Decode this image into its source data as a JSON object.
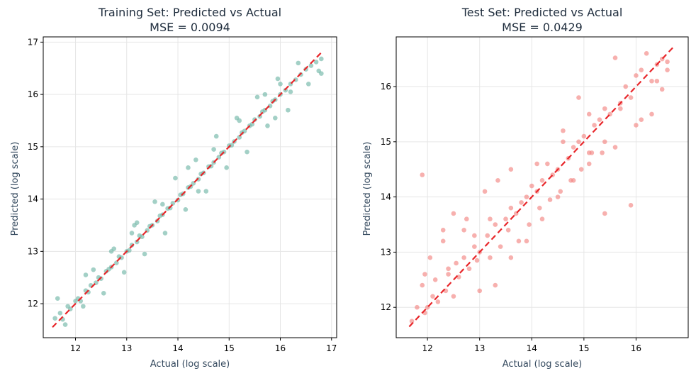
{
  "chart_data": [
    {
      "type": "scatter",
      "title_line1": "Training Set: Predicted vs Actual",
      "title_line2": "MSE = 0.0094",
      "xlabel": "Actual (log scale)",
      "ylabel": "Predicted (log scale)",
      "xlim": [
        11.37,
        17.1
      ],
      "ylim": [
        11.35,
        17.1
      ],
      "xticks": [
        12,
        13,
        14,
        15,
        16,
        17
      ],
      "yticks": [
        12,
        13,
        14,
        15,
        16,
        17
      ],
      "grid": true,
      "point_color": "#72b7a8",
      "reference_line": {
        "x": [
          11.55,
          16.8
        ],
        "y": [
          11.55,
          16.8
        ],
        "color": "#e8262a",
        "style": "dashed"
      },
      "series": [
        {
          "x": [
            11.6,
            11.7,
            11.75,
            11.85,
            11.9,
            12.0,
            12.05,
            12.1,
            12.2,
            12.25,
            12.3,
            12.4,
            12.45,
            12.5,
            12.6,
            12.65,
            12.7,
            12.8,
            12.85,
            12.9,
            13.0,
            13.05,
            13.1,
            13.2,
            13.25,
            13.3,
            13.4,
            13.45,
            13.5,
            13.6,
            13.65,
            13.7,
            13.8,
            13.85,
            13.9,
            14.0,
            14.05,
            14.1,
            14.2,
            14.25,
            14.3,
            14.4,
            14.45,
            14.5,
            14.6,
            14.65,
            14.7,
            14.8,
            14.85,
            14.9,
            15.0,
            15.05,
            15.1,
            15.2,
            15.25,
            15.3,
            15.4,
            15.45,
            15.5,
            15.6,
            15.65,
            15.7,
            15.8,
            15.85,
            15.9,
            16.0,
            16.1,
            16.2,
            16.3,
            16.4,
            16.5,
            16.6,
            16.7,
            16.8,
            11.65,
            11.8,
            12.15,
            12.35,
            12.55,
            12.75,
            12.95,
            13.15,
            13.35,
            13.55,
            13.75,
            13.95,
            14.15,
            14.35,
            14.55,
            14.75,
            14.95,
            15.15,
            15.35,
            15.55,
            15.75,
            15.95,
            16.15,
            16.35,
            16.55,
            16.75,
            12.7,
            13.2,
            13.7,
            14.2,
            14.7,
            15.2,
            15.7,
            16.2,
            16.8,
            16.0,
            13.1,
            14.4,
            12.2,
            15.9
          ],
          "y": [
            11.72,
            11.82,
            11.7,
            11.95,
            11.9,
            12.05,
            12.1,
            12.05,
            12.25,
            12.22,
            12.35,
            12.4,
            12.5,
            12.48,
            12.62,
            12.66,
            12.7,
            12.78,
            12.9,
            12.88,
            13.0,
            13.02,
            13.12,
            13.18,
            13.3,
            13.28,
            13.4,
            13.48,
            13.5,
            13.58,
            13.68,
            13.7,
            13.82,
            13.83,
            13.92,
            13.98,
            14.08,
            14.1,
            14.22,
            14.24,
            14.3,
            14.38,
            14.48,
            14.5,
            14.62,
            14.63,
            14.7,
            14.8,
            14.88,
            14.9,
            15.02,
            15.03,
            15.1,
            15.18,
            15.27,
            15.3,
            15.4,
            15.43,
            15.52,
            15.58,
            15.67,
            15.7,
            15.78,
            15.87,
            15.9,
            16.0,
            16.08,
            16.2,
            16.28,
            16.38,
            16.48,
            16.55,
            16.62,
            16.68,
            12.1,
            11.6,
            11.95,
            12.65,
            12.2,
            13.05,
            12.6,
            13.5,
            12.95,
            13.95,
            13.35,
            14.4,
            13.8,
            14.75,
            14.15,
            15.2,
            14.6,
            15.55,
            14.9,
            15.95,
            15.4,
            16.3,
            15.7,
            16.6,
            16.2,
            16.45,
            13.0,
            13.55,
            13.9,
            14.6,
            14.95,
            15.5,
            16.0,
            16.05,
            16.4,
            16.2,
            13.35,
            14.15,
            12.55,
            15.55
          ]
        }
      ]
    },
    {
      "type": "scatter",
      "title_line1": "Test Set: Predicted vs Actual",
      "title_line2": "MSE = 0.0429",
      "xlabel": "Actual (log scale)",
      "ylabel": "Predicted (log scale)",
      "xlim": [
        11.4,
        17.0
      ],
      "ylim": [
        11.45,
        16.9
      ],
      "xticks": [
        12,
        13,
        14,
        15,
        16
      ],
      "yticks": [
        12,
        13,
        14,
        15,
        16
      ],
      "grid": true,
      "point_color": "#f28582",
      "reference_line": {
        "x": [
          11.65,
          16.72
        ],
        "y": [
          11.65,
          16.72
        ],
        "color": "#e8262a",
        "style": "dashed"
      },
      "series": [
        {
          "x": [
            11.7,
            11.8,
            11.9,
            11.95,
            12.0,
            12.05,
            12.1,
            12.15,
            12.2,
            12.3,
            12.35,
            12.4,
            12.5,
            12.55,
            12.6,
            12.7,
            12.75,
            12.8,
            12.9,
            12.95,
            13.0,
            13.1,
            13.15,
            13.2,
            13.3,
            13.35,
            13.4,
            13.5,
            13.55,
            13.6,
            13.7,
            13.75,
            13.8,
            13.9,
            13.95,
            14.0,
            14.1,
            14.15,
            14.2,
            14.3,
            14.35,
            14.4,
            14.5,
            14.55,
            14.6,
            14.7,
            14.75,
            14.8,
            14.9,
            14.95,
            15.0,
            15.1,
            15.15,
            15.2,
            15.3,
            15.35,
            15.4,
            15.5,
            15.6,
            15.7,
            15.8,
            15.9,
            16.0,
            16.1,
            16.2,
            16.3,
            16.4,
            16.5,
            16.6,
            11.9,
            11.95,
            12.3,
            12.5,
            12.7,
            13.0,
            13.3,
            13.6,
            13.9,
            14.2,
            14.5,
            14.8,
            15.1,
            15.4,
            15.7,
            16.0,
            16.3,
            16.6,
            12.4,
            12.9,
            13.2,
            13.6,
            14.1,
            14.6,
            15.1,
            15.6,
            16.1,
            16.5,
            15.4,
            15.9,
            16.4,
            14.9
          ],
          "y": [
            11.75,
            12.0,
            12.4,
            11.9,
            12.0,
            12.9,
            12.2,
            12.5,
            12.1,
            13.4,
            12.3,
            12.6,
            13.7,
            12.8,
            12.55,
            12.9,
            13.6,
            12.7,
            13.1,
            12.85,
            13.0,
            14.1,
            13.3,
            12.9,
            13.5,
            14.3,
            13.1,
            13.6,
            13.4,
            14.5,
            13.7,
            13.2,
            13.9,
            14.0,
            13.5,
            14.2,
            14.1,
            13.8,
            14.3,
            14.6,
            13.95,
            14.4,
            14.5,
            14.1,
            15.2,
            14.7,
            14.3,
            14.9,
            15.0,
            14.5,
            15.1,
            15.5,
            14.8,
            15.3,
            15.4,
            14.8,
            15.6,
            15.5,
            16.52,
            15.7,
            16.0,
            15.8,
            16.2,
            16.3,
            16.6,
            16.1,
            16.4,
            16.5,
            16.45,
            14.4,
            12.6,
            13.2,
            12.2,
            13.4,
            12.3,
            12.4,
            12.9,
            13.2,
            13.6,
            14.0,
            14.3,
            14.8,
            15.0,
            15.6,
            15.3,
            15.5,
            16.3,
            12.7,
            13.3,
            13.6,
            13.8,
            14.6,
            15.0,
            14.6,
            14.9,
            15.4,
            15.95,
            13.7,
            13.85,
            16.1,
            15.8
          ]
        }
      ]
    }
  ]
}
